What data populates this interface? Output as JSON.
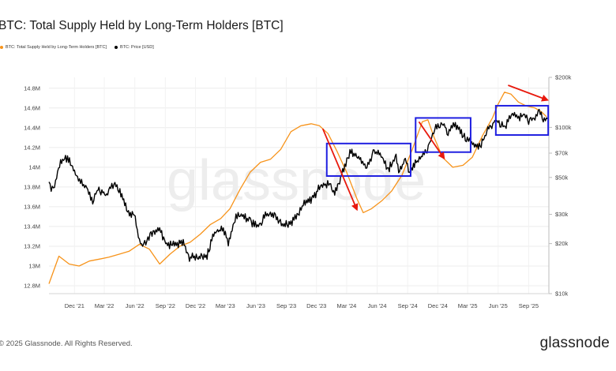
{
  "title": "BTC: Total Supply Held by Long-Term Holders [BTC]",
  "legend": [
    {
      "label": "BTC: Total Supply Held by Long-Term Holders [BTC]",
      "color": "#f7931a"
    },
    {
      "label": "BTC: Price [USD]",
      "color": "#000000"
    }
  ],
  "watermark": "glassnode",
  "footer": "© 2025 Glassnode. All Rights Reserved.",
  "brand": "glassnode",
  "chart_data": {
    "type": "line",
    "x_tick_labels": [
      "Dec '21",
      "Mar '22",
      "Jun '22",
      "Sep '22",
      "Dec '22",
      "Mar '23",
      "Jun '23",
      "Sep '23",
      "Dec '23",
      "Mar '24",
      "Jun '24",
      "Sep '24",
      "Dec '24",
      "Mar '25",
      "Jun '25",
      "Sep '25"
    ],
    "x_tick_dates": [
      "2021-12-01",
      "2022-03-01",
      "2022-06-01",
      "2022-09-01",
      "2022-12-01",
      "2023-03-01",
      "2023-06-01",
      "2023-09-01",
      "2023-12-01",
      "2024-03-01",
      "2024-06-01",
      "2024-09-01",
      "2024-12-01",
      "2025-03-01",
      "2025-06-01",
      "2025-09-01"
    ],
    "x_range": [
      "2021-09-15",
      "2025-11-01"
    ],
    "left_axis": {
      "ticks": [
        "12.8M",
        "13M",
        "13.2M",
        "13.4M",
        "13.6M",
        "13.8M",
        "14M",
        "14.2M",
        "14.4M",
        "14.6M",
        "14.8M"
      ],
      "tick_values": [
        12.8,
        13.0,
        13.2,
        13.4,
        13.6,
        13.8,
        14.0,
        14.2,
        14.4,
        14.6,
        14.8
      ],
      "range": [
        12.72,
        14.91
      ],
      "unit": "M BTC"
    },
    "right_axis": {
      "ticks": [
        "$10k",
        "$20k",
        "$30k",
        "$50k",
        "$70k",
        "$100k",
        "$200k"
      ],
      "tick_values": [
        10000,
        20000,
        30000,
        50000,
        70000,
        100000,
        200000
      ],
      "range": [
        10000,
        200000
      ],
      "scale": "log"
    },
    "grid": true,
    "series": [
      {
        "name": "BTC: Total Supply Held by Long-Term Holders [BTC]",
        "axis": "left",
        "color": "#f7931a",
        "points": [
          [
            "2021-09-15",
            12.82
          ],
          [
            "2021-10-15",
            13.1
          ],
          [
            "2021-11-15",
            13.02
          ],
          [
            "2021-12-15",
            13.0
          ],
          [
            "2022-01-15",
            13.05
          ],
          [
            "2022-02-15",
            13.07
          ],
          [
            "2022-03-15",
            13.09
          ],
          [
            "2022-04-15",
            13.12
          ],
          [
            "2022-05-15",
            13.15
          ],
          [
            "2022-06-15",
            13.22
          ],
          [
            "2022-07-15",
            13.17
          ],
          [
            "2022-08-15",
            13.02
          ],
          [
            "2022-09-15",
            13.12
          ],
          [
            "2022-10-15",
            13.2
          ],
          [
            "2022-11-15",
            13.24
          ],
          [
            "2022-12-15",
            13.32
          ],
          [
            "2023-01-15",
            13.42
          ],
          [
            "2023-02-15",
            13.48
          ],
          [
            "2023-03-15",
            13.58
          ],
          [
            "2023-04-15",
            13.78
          ],
          [
            "2023-05-15",
            13.95
          ],
          [
            "2023-06-15",
            14.05
          ],
          [
            "2023-07-15",
            14.08
          ],
          [
            "2023-08-15",
            14.18
          ],
          [
            "2023-09-15",
            14.36
          ],
          [
            "2023-10-15",
            14.42
          ],
          [
            "2023-11-15",
            14.44
          ],
          [
            "2023-12-10",
            14.42
          ],
          [
            "2024-01-05",
            14.34
          ],
          [
            "2024-02-01",
            14.16
          ],
          [
            "2024-03-01",
            13.95
          ],
          [
            "2024-04-01",
            13.68
          ],
          [
            "2024-04-20",
            13.54
          ],
          [
            "2024-05-15",
            13.58
          ],
          [
            "2024-06-15",
            13.66
          ],
          [
            "2024-07-15",
            13.76
          ],
          [
            "2024-08-15",
            13.92
          ],
          [
            "2024-09-15",
            14.18
          ],
          [
            "2024-10-15",
            14.46
          ],
          [
            "2024-11-01",
            14.48
          ],
          [
            "2024-11-20",
            14.3
          ],
          [
            "2024-12-15",
            14.1
          ],
          [
            "2025-01-15",
            14.0
          ],
          [
            "2025-02-15",
            14.02
          ],
          [
            "2025-03-15",
            14.1
          ],
          [
            "2025-04-15",
            14.32
          ],
          [
            "2025-05-15",
            14.5
          ],
          [
            "2025-06-01",
            14.64
          ],
          [
            "2025-06-20",
            14.76
          ],
          [
            "2025-07-10",
            14.74
          ],
          [
            "2025-08-01",
            14.66
          ],
          [
            "2025-08-25",
            14.62
          ],
          [
            "2025-09-20",
            14.6
          ],
          [
            "2025-10-10",
            14.56
          ],
          [
            "2025-10-25",
            14.51
          ]
        ]
      },
      {
        "name": "BTC: Price [USD]",
        "axis": "right",
        "color": "#000000",
        "points": [
          [
            "2021-09-15",
            47000
          ],
          [
            "2021-09-25",
            42000
          ],
          [
            "2021-10-05",
            48000
          ],
          [
            "2021-10-20",
            62000
          ],
          [
            "2021-11-10",
            66000
          ],
          [
            "2021-11-25",
            57000
          ],
          [
            "2021-12-10",
            49000
          ],
          [
            "2022-01-10",
            42000
          ],
          [
            "2022-01-25",
            36000
          ],
          [
            "2022-02-10",
            43000
          ],
          [
            "2022-03-05",
            39000
          ],
          [
            "2022-03-30",
            46000
          ],
          [
            "2022-04-20",
            40000
          ],
          [
            "2022-05-10",
            31000
          ],
          [
            "2022-05-30",
            30000
          ],
          [
            "2022-06-18",
            19500
          ],
          [
            "2022-07-01",
            19800
          ],
          [
            "2022-07-20",
            23000
          ],
          [
            "2022-08-15",
            24000
          ],
          [
            "2022-09-05",
            19800
          ],
          [
            "2022-10-01",
            19500
          ],
          [
            "2022-10-25",
            20500
          ],
          [
            "2022-11-10",
            16500
          ],
          [
            "2022-12-15",
            16800
          ],
          [
            "2023-01-05",
            16900
          ],
          [
            "2023-01-25",
            23000
          ],
          [
            "2023-02-20",
            24500
          ],
          [
            "2023-03-10",
            20500
          ],
          [
            "2023-03-30",
            28200
          ],
          [
            "2023-04-15",
            30200
          ],
          [
            "2023-05-15",
            27000
          ],
          [
            "2023-06-15",
            25500
          ],
          [
            "2023-06-30",
            30500
          ],
          [
            "2023-07-30",
            29300
          ],
          [
            "2023-08-20",
            26000
          ],
          [
            "2023-09-15",
            26500
          ],
          [
            "2023-10-25",
            34500
          ],
          [
            "2023-11-20",
            37000
          ],
          [
            "2023-12-10",
            43500
          ],
          [
            "2024-01-10",
            46500
          ],
          [
            "2024-01-25",
            40000
          ],
          [
            "2024-02-15",
            52000
          ],
          [
            "2024-03-14",
            72000
          ],
          [
            "2024-04-15",
            63500
          ],
          [
            "2024-05-01",
            58000
          ],
          [
            "2024-05-20",
            70000
          ],
          [
            "2024-06-10",
            69000
          ],
          [
            "2024-07-05",
            55500
          ],
          [
            "2024-07-28",
            68500
          ],
          [
            "2024-08-05",
            53000
          ],
          [
            "2024-08-25",
            64000
          ],
          [
            "2024-09-07",
            53500
          ],
          [
            "2024-09-30",
            63500
          ],
          [
            "2024-10-30",
            72000
          ],
          [
            "2024-11-12",
            89000
          ],
          [
            "2024-11-22",
            98000
          ],
          [
            "2024-12-17",
            106000
          ],
          [
            "2025-01-01",
            93500
          ],
          [
            "2025-01-20",
            105000
          ],
          [
            "2025-02-25",
            86000
          ],
          [
            "2025-03-10",
            80000
          ],
          [
            "2025-04-08",
            76500
          ],
          [
            "2025-05-01",
            96500
          ],
          [
            "2025-05-22",
            110000
          ],
          [
            "2025-06-22",
            101000
          ],
          [
            "2025-07-14",
            121000
          ],
          [
            "2025-08-02",
            113000
          ],
          [
            "2025-08-14",
            123000
          ],
          [
            "2025-09-01",
            108000
          ],
          [
            "2025-09-20",
            115000
          ],
          [
            "2025-10-06",
            124000
          ],
          [
            "2025-10-15",
            111000
          ],
          [
            "2025-10-28",
            112500
          ]
        ]
      }
    ],
    "annotations": {
      "boxes": [
        {
          "from": "2024-01-01",
          "to": "2024-09-10",
          "price_top": 80000,
          "price_bottom": 51000
        },
        {
          "from": "2024-09-25",
          "to": "2025-03-10",
          "price_top": 114000,
          "price_bottom": 71000
        },
        {
          "from": "2025-05-25",
          "to": "2025-10-30",
          "price_top": 135000,
          "price_bottom": 90000
        }
      ],
      "arrows": [
        {
          "from": [
            "2023-12-20",
            14.39
          ],
          "to": [
            "2024-04-01",
            13.57
          ]
        },
        {
          "from": [
            "2024-10-05",
            14.46
          ],
          "to": [
            "2024-12-20",
            14.09
          ]
        },
        {
          "from": [
            "2025-07-01",
            14.83
          ],
          "to": [
            "2025-10-28",
            14.68
          ]
        }
      ],
      "box_color": "#1f1fe0",
      "arrow_color": "#e8190d"
    }
  }
}
